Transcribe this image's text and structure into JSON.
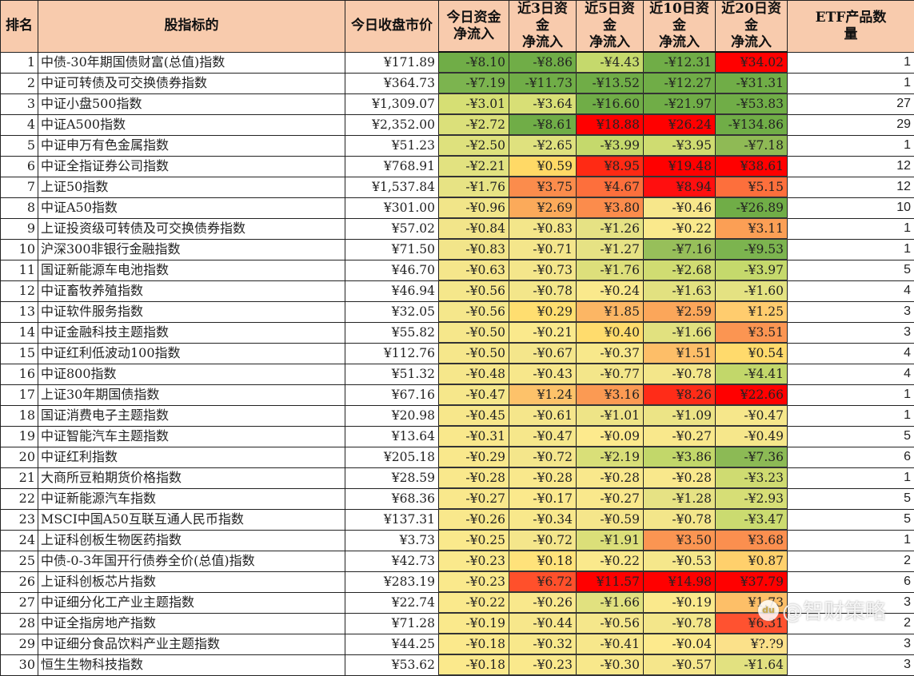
{
  "table": {
    "headers": [
      "排名",
      "股指标的",
      "今日收盘市价",
      "今日资金\n净流入",
      "近3日资金\n净流入",
      "近5日资金\n净流入",
      "近10日资金\n净流入",
      "近20日资金\n净流入",
      "ETF产品数\n量"
    ],
    "rows": [
      {
        "rank": "1",
        "name": "中债-30年期国债财富(总值)指数",
        "price": "¥171.89",
        "d1": "-¥8.10",
        "d3": "-¥8.86",
        "d5": "-¥4.43",
        "d10": "-¥12.31",
        "d20": "¥34.02",
        "etf": "1",
        "c": [
          "#70ad47",
          "#70ad47",
          "#c5d96c",
          "#70ad47",
          "#ff0000"
        ]
      },
      {
        "rank": "2",
        "name": "中证可转债及可交换债券指数",
        "price": "¥364.73",
        "d1": "-¥7.19",
        "d3": "-¥11.73",
        "d5": "-¥13.52",
        "d10": "-¥12.27",
        "d20": "-¥31.31",
        "etf": "1",
        "c": [
          "#7cb44f",
          "#70ad47",
          "#70ad47",
          "#70ad47",
          "#70ad47"
        ]
      },
      {
        "rank": "3",
        "name": "中证小盘500指数",
        "price": "¥1,309.07",
        "d1": "-¥3.01",
        "d3": "-¥3.64",
        "d5": "-¥16.60",
        "d10": "-¥21.97",
        "d20": "-¥53.83",
        "etf": "27",
        "c": [
          "#d6df74",
          "#d8df76",
          "#70ad47",
          "#70ad47",
          "#70ad47"
        ]
      },
      {
        "rank": "4",
        "name": "中证A500指数",
        "price": "¥2,352.00",
        "d1": "-¥2.72",
        "d3": "-¥8.61",
        "d5": "¥18.88",
        "d10": "¥26.24",
        "d20": "-¥134.86",
        "etf": "29",
        "c": [
          "#dbe07a",
          "#70ad47",
          "#ff0000",
          "#ff0000",
          "#70ad47"
        ]
      },
      {
        "rank": "5",
        "name": "中证申万有色金属指数",
        "price": "¥51.23",
        "d1": "-¥2.50",
        "d3": "-¥2.65",
        "d5": "-¥3.99",
        "d10": "-¥3.95",
        "d20": "-¥7.18",
        "etf": "1",
        "c": [
          "#dee17d",
          "#dfe17e",
          "#c5d96c",
          "#cfdc71",
          "#8fba55"
        ]
      },
      {
        "rank": "6",
        "name": "中证全指证券公司指数",
        "price": "¥768.91",
        "d1": "-¥2.21",
        "d3": "¥0.59",
        "d5": "¥8.95",
        "d10": "¥19.48",
        "d20": "¥38.61",
        "etf": "12",
        "c": [
          "#e2e280",
          "#ffd966",
          "#ff2a14",
          "#ff0000",
          "#ff0000"
        ]
      },
      {
        "rank": "7",
        "name": "上证50指数",
        "price": "¥1,537.84",
        "d1": "-¥1.76",
        "d3": "¥3.75",
        "d5": "¥4.67",
        "d10": "¥8.94",
        "d20": "¥5.15",
        "etf": "12",
        "c": [
          "#e7e384",
          "#fb8c4c",
          "#fd6f3c",
          "#ff0f0f",
          "#fd6f3c"
        ]
      },
      {
        "rank": "8",
        "name": "中证A50指数",
        "price": "¥301.00",
        "d1": "-¥0.96",
        "d3": "¥2.69",
        "d5": "¥3.80",
        "d10": "-¥0.46",
        "d20": "-¥26.89",
        "etf": "10",
        "c": [
          "#f1e589",
          "#fbaa5a",
          "#fb8c4c",
          "#f7e78b",
          "#70ad47"
        ]
      },
      {
        "rank": "9",
        "name": "上证投资级可转债及可交换债券指数",
        "price": "¥57.02",
        "d1": "-¥0.84",
        "d3": "-¥0.83",
        "d5": "-¥1.26",
        "d10": "-¥0.22",
        "d20": "¥3.11",
        "etf": "1",
        "c": [
          "#f2e58a",
          "#f3e68a",
          "#e6e284",
          "#fae98c",
          "#fb9f55"
        ]
      },
      {
        "rank": "10",
        "name": "沪深300非银行金融指数",
        "price": "¥71.50",
        "d1": "-¥0.83",
        "d3": "-¥0.71",
        "d5": "-¥1.27",
        "d10": "-¥7.16",
        "d20": "-¥9.53",
        "etf": "1",
        "c": [
          "#f2e58a",
          "#f4e68b",
          "#e6e284",
          "#97bf5a",
          "#7cb44f"
        ]
      },
      {
        "rank": "11",
        "name": "国证新能源车电池指数",
        "price": "¥46.70",
        "d1": "-¥0.63",
        "d3": "-¥0.73",
        "d5": "-¥1.76",
        "d10": "-¥2.68",
        "d20": "-¥3.97",
        "etf": "5",
        "c": [
          "#f5e68b",
          "#f4e68b",
          "#dddf7b",
          "#d0dc72",
          "#c5d96c"
        ]
      },
      {
        "rank": "12",
        "name": "中证畜牧养殖指数",
        "price": "¥46.94",
        "d1": "-¥0.56",
        "d3": "-¥0.78",
        "d5": "-¥0.24",
        "d10": "-¥1.63",
        "d20": "-¥1.60",
        "etf": "4",
        "c": [
          "#f5e78b",
          "#f3e68a",
          "#fae98c",
          "#e2e180",
          "#e4e282"
        ]
      },
      {
        "rank": "13",
        "name": "中证软件服务指数",
        "price": "¥32.05",
        "d1": "-¥0.56",
        "d3": "¥0.29",
        "d5": "¥1.85",
        "d10": "¥2.59",
        "d20": "¥1.25",
        "etf": "3",
        "c": [
          "#f5e78b",
          "#ffde70",
          "#fcb664",
          "#fba65a",
          "#ffcc6e"
        ]
      },
      {
        "rank": "14",
        "name": "中证金融科技主题指数",
        "price": "¥55.82",
        "d1": "-¥0.50",
        "d3": "-¥0.21",
        "d5": "¥0.40",
        "d10": "-¥1.66",
        "d20": "¥3.51",
        "etf": "3",
        "c": [
          "#f6e78b",
          "#fae98c",
          "#ffdc6d",
          "#e1e17f",
          "#fb9552"
        ]
      },
      {
        "rank": "15",
        "name": "中证红利低波动100指数",
        "price": "¥112.76",
        "d1": "-¥0.50",
        "d3": "-¥0.67",
        "d5": "-¥0.37",
        "d10": "¥1.51",
        "d20": "¥0.54",
        "etf": "4",
        "c": [
          "#f6e78b",
          "#f4e68b",
          "#f8e88b",
          "#fdbe68",
          "#ffda6c"
        ]
      },
      {
        "rank": "16",
        "name": "中证800指数",
        "price": "¥51.32",
        "d1": "-¥0.48",
        "d3": "-¥0.43",
        "d5": "-¥0.77",
        "d10": "-¥0.78",
        "d20": "-¥4.41",
        "etf": "4",
        "c": [
          "#f6e78b",
          "#f7e78b",
          "#f3e68a",
          "#f3e68a",
          "#c2d76a"
        ]
      },
      {
        "rank": "17",
        "name": "上证30年期国债指数",
        "price": "¥67.16",
        "d1": "-¥0.47",
        "d3": "¥1.24",
        "d5": "¥3.16",
        "d10": "¥8.26",
        "d20": "¥22.66",
        "etf": "1",
        "c": [
          "#f6e78b",
          "#fdc26a",
          "#fb9a53",
          "#ff2c18",
          "#ff0000"
        ]
      },
      {
        "rank": "18",
        "name": "国证消费电子主题指数",
        "price": "¥20.98",
        "d1": "-¥0.45",
        "d3": "-¥0.61",
        "d5": "-¥1.01",
        "d10": "-¥1.09",
        "d20": "-¥0.47",
        "etf": "1",
        "c": [
          "#f7e78b",
          "#f5e68b",
          "#eee487",
          "#ece486",
          "#f6e78b"
        ]
      },
      {
        "rank": "19",
        "name": "中证智能汽车主题指数",
        "price": "¥13.64",
        "d1": "-¥0.31",
        "d3": "-¥0.47",
        "d5": "-¥0.09",
        "d10": "-¥0.27",
        "d20": "-¥0.49",
        "etf": "5",
        "c": [
          "#f9e88c",
          "#f6e78b",
          "#fdea8d",
          "#f9e88c",
          "#f6e78b"
        ]
      },
      {
        "rank": "20",
        "name": "中证红利指数",
        "price": "¥205.18",
        "d1": "-¥0.29",
        "d3": "-¥0.72",
        "d5": "-¥2.19",
        "d10": "-¥3.86",
        "d20": "-¥7.36",
        "etf": "6",
        "c": [
          "#f9e88c",
          "#f4e68b",
          "#d9df78",
          "#c2d76a",
          "#8cba55"
        ]
      },
      {
        "rank": "21",
        "name": "大商所豆粕期货价格指数",
        "price": "¥28.59",
        "d1": "-¥0.28",
        "d3": "-¥0.28",
        "d5": "-¥0.28",
        "d10": "-¥0.28",
        "d20": "-¥3.23",
        "etf": "1",
        "c": [
          "#f9e88c",
          "#f9e88c",
          "#f9e88c",
          "#f9e88c",
          "#cfdb71"
        ]
      },
      {
        "rank": "22",
        "name": "中证新能源汽车指数",
        "price": "¥68.36",
        "d1": "-¥0.27",
        "d3": "-¥0.17",
        "d5": "-¥0.27",
        "d10": "-¥1.28",
        "d20": "-¥2.93",
        "etf": "5",
        "c": [
          "#f9e88c",
          "#fbe98c",
          "#f9e88c",
          "#e6e284",
          "#d6de76"
        ]
      },
      {
        "rank": "23",
        "name": "MSCI中国A50互联互通人民币指数",
        "price": "¥137.31",
        "d1": "-¥0.26",
        "d3": "-¥0.34",
        "d5": "-¥0.59",
        "d10": "-¥0.78",
        "d20": "-¥3.47",
        "etf": "5",
        "c": [
          "#f9e88c",
          "#f8e88b",
          "#f5e68b",
          "#f3e68a",
          "#cbdb70"
        ]
      },
      {
        "rank": "24",
        "name": "上证科创板生物医药指数",
        "price": "¥3.73",
        "d1": "-¥0.25",
        "d3": "-¥0.72",
        "d5": "-¥1.91",
        "d10": "¥3.50",
        "d20": "¥3.68",
        "etf": "1",
        "c": [
          "#fae98c",
          "#f4e68b",
          "#dbdf79",
          "#fb9552",
          "#fb8f4f"
        ]
      },
      {
        "rank": "25",
        "name": "中债-0-3年国开行债券全价(总值)指数",
        "price": "¥42.73",
        "d1": "-¥0.23",
        "d3": "¥0.18",
        "d5": "-¥0.22",
        "d10": "-¥0.53",
        "d20": "¥0.87",
        "etf": "2",
        "c": [
          "#fae98c",
          "#ffe27a",
          "#fae98c",
          "#f5e78b",
          "#ffd06c"
        ]
      },
      {
        "rank": "26",
        "name": "上证科创板芯片指数",
        "price": "¥283.19",
        "d1": "-¥0.23",
        "d3": "¥6.72",
        "d5": "¥11.57",
        "d10": "¥14.98",
        "d20": "¥37.79",
        "etf": "6",
        "c": [
          "#fae98c",
          "#ff502b",
          "#ff0000",
          "#ff0000",
          "#ff0000"
        ]
      },
      {
        "rank": "27",
        "name": "中证细分化工产业主题指数",
        "price": "¥22.74",
        "d1": "-¥0.22",
        "d3": "-¥0.26",
        "d5": "-¥1.66",
        "d10": "-¥0.19",
        "d20": "¥1.73",
        "etf": "3",
        "c": [
          "#fae98c",
          "#f9e88c",
          "#e1e17f",
          "#fae98c",
          "#fdbf68"
        ]
      },
      {
        "rank": "28",
        "name": "中证全指房地产指数",
        "price": "¥71.28",
        "d1": "-¥0.19",
        "d3": "-¥0.44",
        "d5": "-¥0.56",
        "d10": "-¥0.78",
        "d20": "¥6.31",
        "etf": "2",
        "c": [
          "#fae98c",
          "#f7e78b",
          "#f5e78b",
          "#f3e68a",
          "#ff5230"
        ]
      },
      {
        "rank": "29",
        "name": "中证细分食品饮料产业主题指数",
        "price": "¥44.25",
        "d1": "-¥0.18",
        "d3": "-¥0.32",
        "d5": "-¥0.41",
        "d10": "-¥0.04",
        "d20": "¥?.?9",
        "etf": "3",
        "c": [
          "#fbe98c",
          "#f8e88b",
          "#f7e78b",
          "#fdea8d",
          "#fbe18a"
        ]
      },
      {
        "rank": "30",
        "name": "恒生生物科技指数",
        "price": "¥53.62",
        "d1": "-¥0.18",
        "d3": "-¥0.23",
        "d5": "-¥0.30",
        "d10": "-¥0.57",
        "d20": "-¥1.64",
        "etf": "3",
        "c": [
          "#fbe98c",
          "#fae98c",
          "#f8e88b",
          "#f5e68b",
          "#e2e180"
        ]
      }
    ]
  },
  "colors": {
    "header_bg": "#f8cbad",
    "positive_high": "#ff0000",
    "negative_high": "#70ad47",
    "neutral": "#ffeb84"
  },
  "watermark": {
    "icon": "du",
    "text": "@智财策略"
  }
}
